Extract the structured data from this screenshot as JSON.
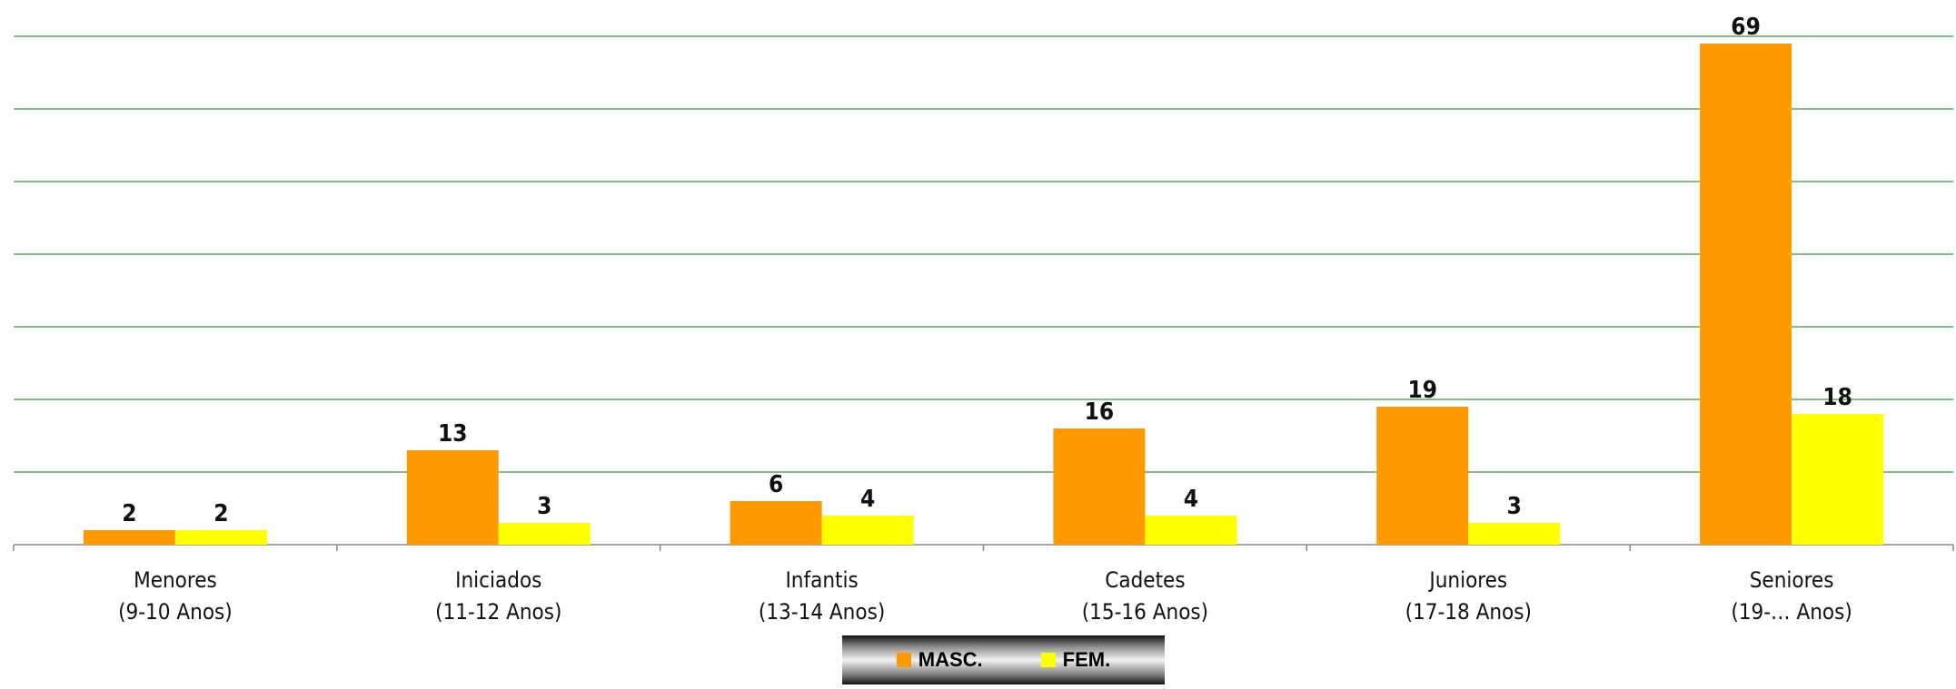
{
  "chart_data": {
    "type": "bar",
    "categories": [
      [
        "Menores",
        "(9-10 Anos)"
      ],
      [
        "Iniciados",
        "(11-12 Anos)"
      ],
      [
        "Infantis",
        "(13-14 Anos)"
      ],
      [
        "Cadetes",
        "(15-16 Anos)"
      ],
      [
        "Juniores",
        "(17-18 Anos)"
      ],
      [
        "Seniores",
        "(19-… Anos)"
      ]
    ],
    "series": [
      {
        "name": "MASC.",
        "color": "#FF9900",
        "values": [
          2,
          13,
          6,
          16,
          19,
          69
        ]
      },
      {
        "name": "FEM.",
        "color": "#FFFF00",
        "values": [
          2,
          3,
          4,
          4,
          3,
          18
        ]
      }
    ],
    "ylim": [
      0,
      70
    ],
    "grid": true,
    "gridline_color": "#339933",
    "legend_position": "bottom-center"
  }
}
